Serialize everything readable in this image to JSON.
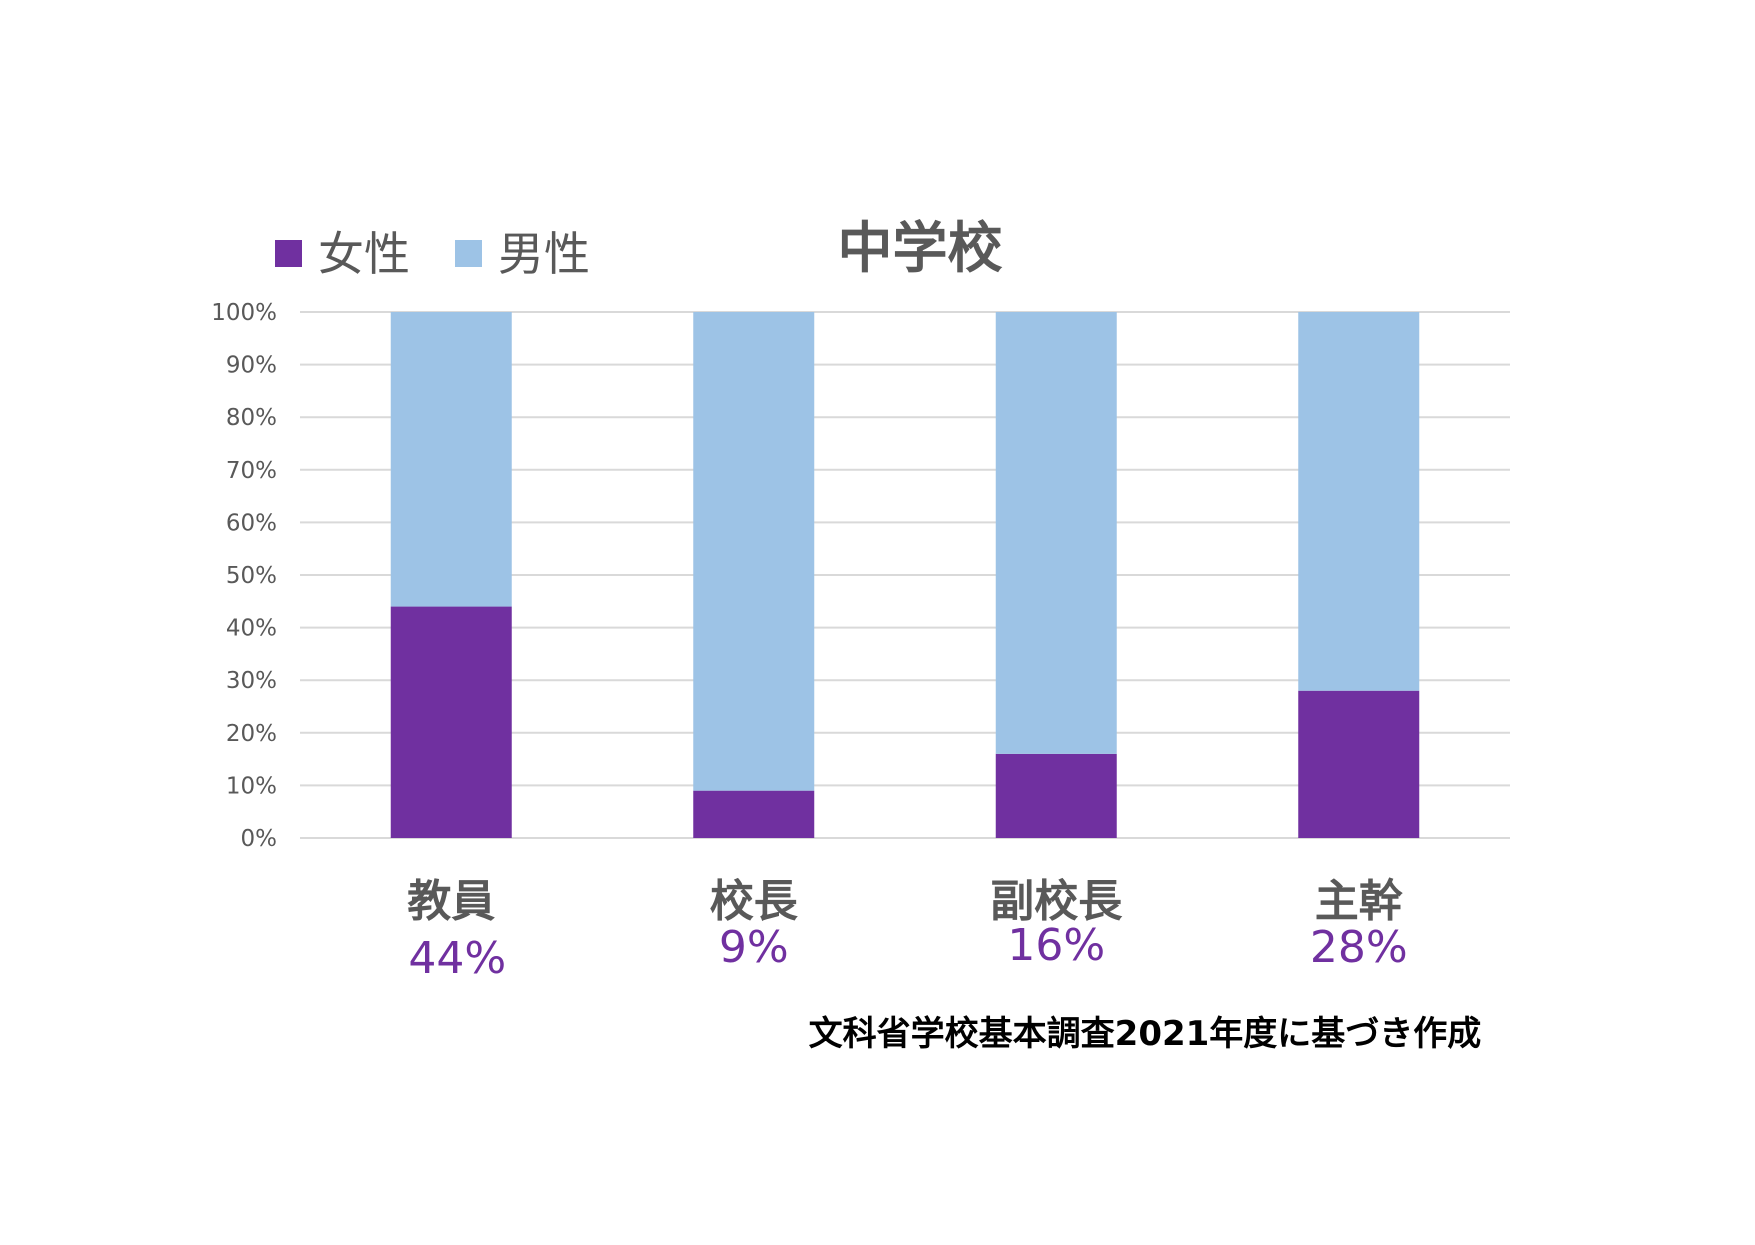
{
  "chart_data": {
    "type": "bar",
    "stacked": true,
    "normalized": true,
    "title": "中学校",
    "categories": [
      "教員",
      "校長",
      "副校長",
      "主幹"
    ],
    "series": [
      {
        "name": "女性",
        "values": [
          44,
          9,
          16,
          28
        ],
        "color": "#7030A0"
      },
      {
        "name": "男性",
        "values": [
          56,
          91,
          84,
          72
        ],
        "color": "#9DC3E6"
      }
    ],
    "value_labels": [
      "44%",
      "9%",
      "16%",
      "28%"
    ],
    "ylim": [
      0,
      100
    ],
    "yticks": [
      "0%",
      "10%",
      "20%",
      "30%",
      "40%",
      "50%",
      "60%",
      "70%",
      "80%",
      "90%",
      "100%"
    ],
    "grid": true,
    "legend_position": "top-left"
  },
  "source_note": "文科省学校基本調査2021年度に基づき作成",
  "colors": {
    "grid": "#D9D9D9",
    "axis_text": "#595959",
    "category_text": "#595959",
    "value_label": "#7030A0",
    "title": "#595959",
    "source_note": "#000000"
  }
}
